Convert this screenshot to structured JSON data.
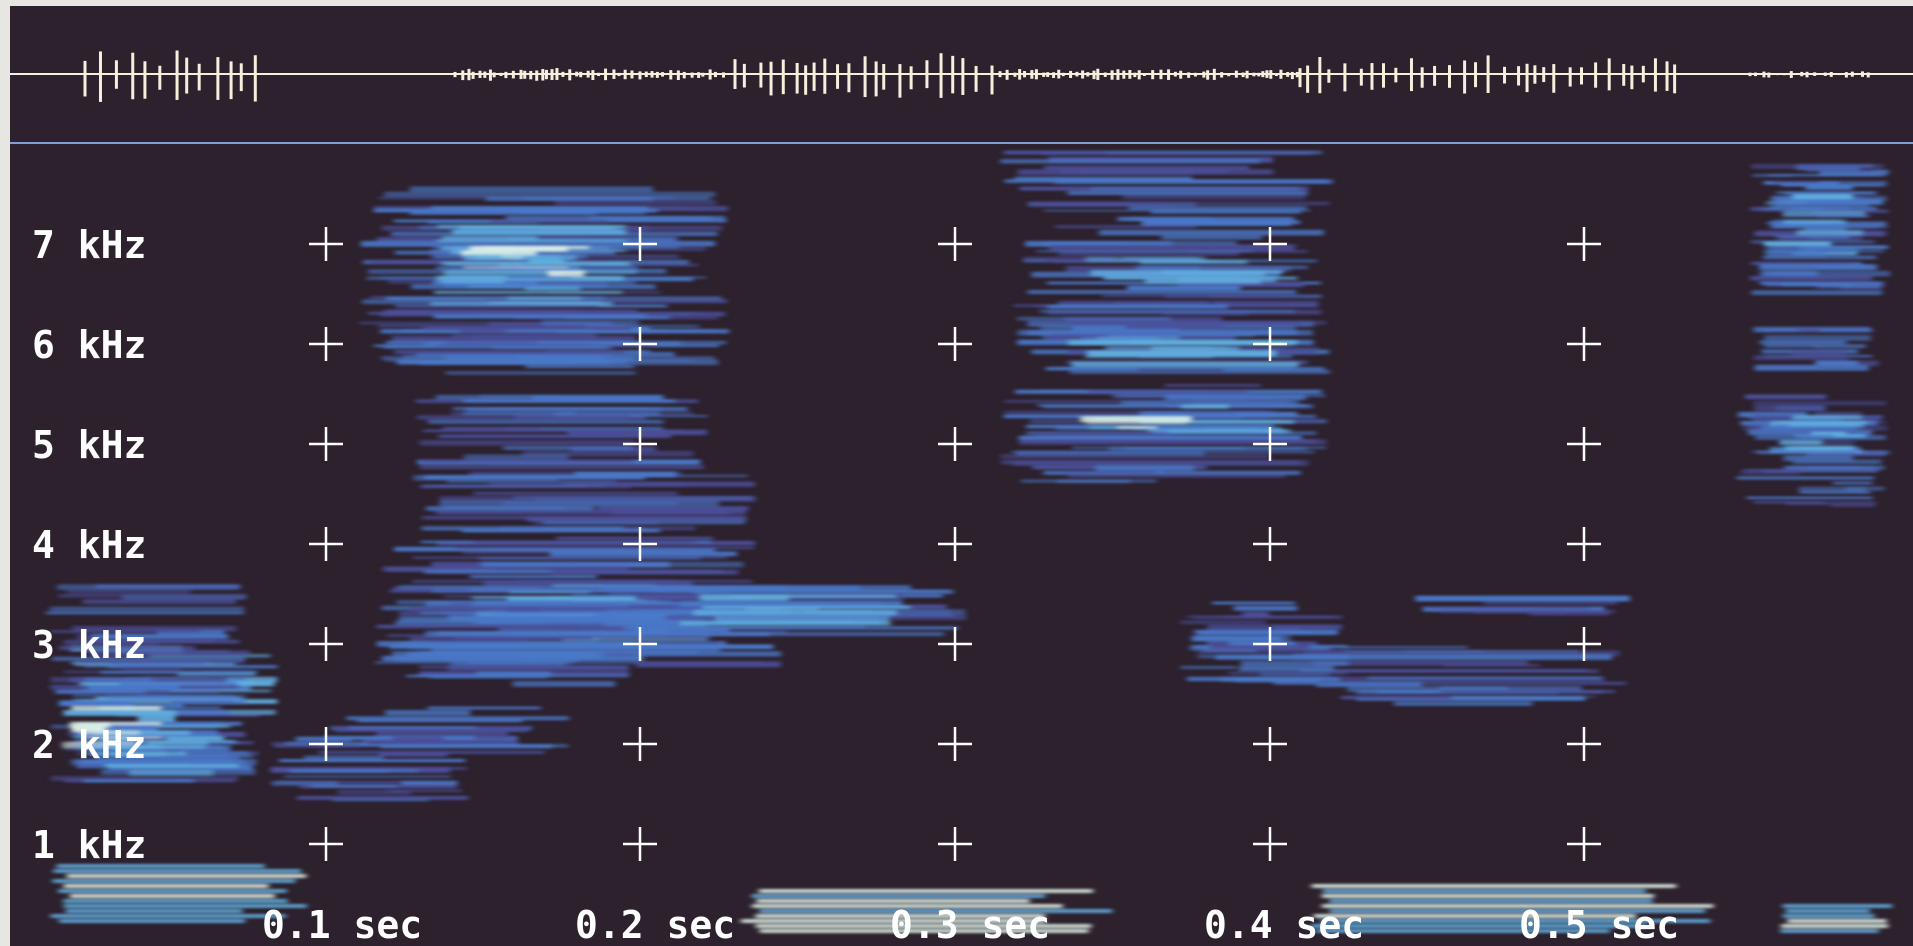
{
  "spectrogram": {
    "background_color": "#2d212d",
    "waveform_color": "#f4f0dc",
    "divider_color": "#7f9fd6",
    "energy_colors": [
      "#4b4f9a",
      "#4a78c8",
      "#61aee0",
      "#dff2e8"
    ],
    "frequency_labels": [
      "7 kHz",
      "6 kHz",
      "5 kHz",
      "4 kHz",
      "3 kHz",
      "2 kHz",
      "1 kHz"
    ],
    "time_labels": [
      "0.1 sec",
      "0.2 sec",
      "0.3 sec",
      "0.4 sec",
      "0.5 sec"
    ],
    "grid_marker": "crosshair"
  }
}
